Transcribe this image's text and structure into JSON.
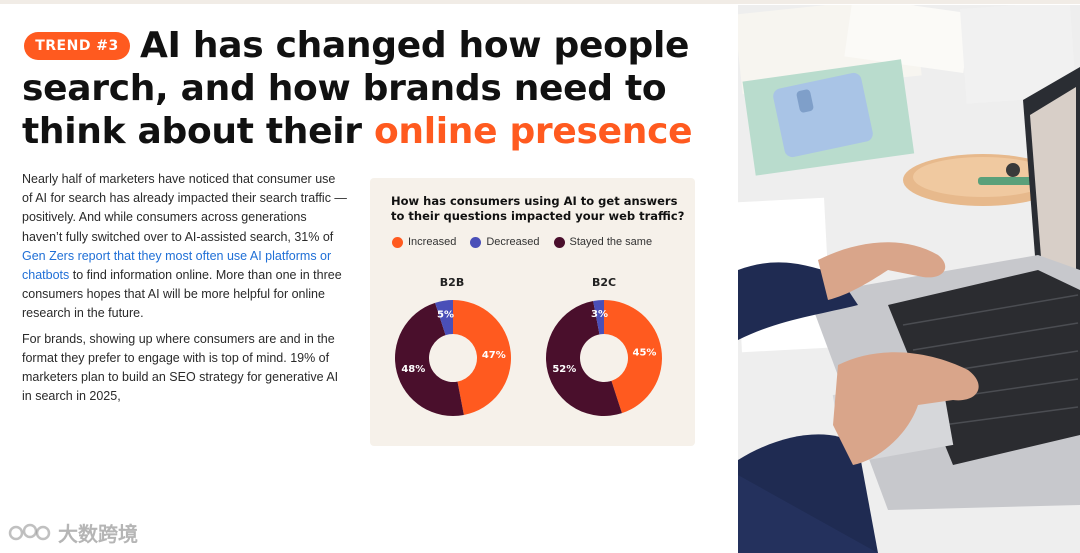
{
  "badge": "TREND #3",
  "headline": {
    "part1": "AI has changed how people search, and how brands need to think about their ",
    "accent": "online presence"
  },
  "body": {
    "p1_a": "Nearly half of marketers have noticed that consumer use of AI for search has already impacted their search traffic — positively. And while consumers across generations haven’t fully switched over to AI-assisted search, 31% of ",
    "p1_link": "Gen Zers report that they most often use AI platforms or chatbots",
    "p1_b": " to find information online. More than one in three consumers hopes that AI will be more helpful for online research in the future.",
    "p2": "For brands, showing up where consumers are and in the format they prefer to engage with is top of mind. 19% of marketers plan to build an SEO strategy for generative AI in search in 2025,"
  },
  "watermark": "大数跨境",
  "chart_data": {
    "type": "pie",
    "title": "How has consumers using AI to get answers to their questions impacted your web traffic?",
    "legend_position": "top",
    "legend": [
      {
        "label": "Increased",
        "color": "#ff5a1f"
      },
      {
        "label": "Decreased",
        "color": "#4a4fb8"
      },
      {
        "label": "Stayed the same",
        "color": "#4a0f2c"
      }
    ],
    "charts": [
      {
        "name": "B2B",
        "slices": [
          {
            "label": "Increased",
            "value": 47,
            "display": "47%",
            "color": "#ff5a1f"
          },
          {
            "label": "Stayed the same",
            "value": 48,
            "display": "48%",
            "color": "#4a0f2c"
          },
          {
            "label": "Decreased",
            "value": 5,
            "display": "5%",
            "color": "#4a4fb8"
          }
        ]
      },
      {
        "name": "B2C",
        "slices": [
          {
            "label": "Increased",
            "value": 45,
            "display": "45%",
            "color": "#ff5a1f"
          },
          {
            "label": "Stayed the same",
            "value": 52,
            "display": "52%",
            "color": "#4a0f2c"
          },
          {
            "label": "Decreased",
            "value": 3,
            "display": "3%",
            "color": "#4a4fb8"
          }
        ]
      }
    ]
  }
}
